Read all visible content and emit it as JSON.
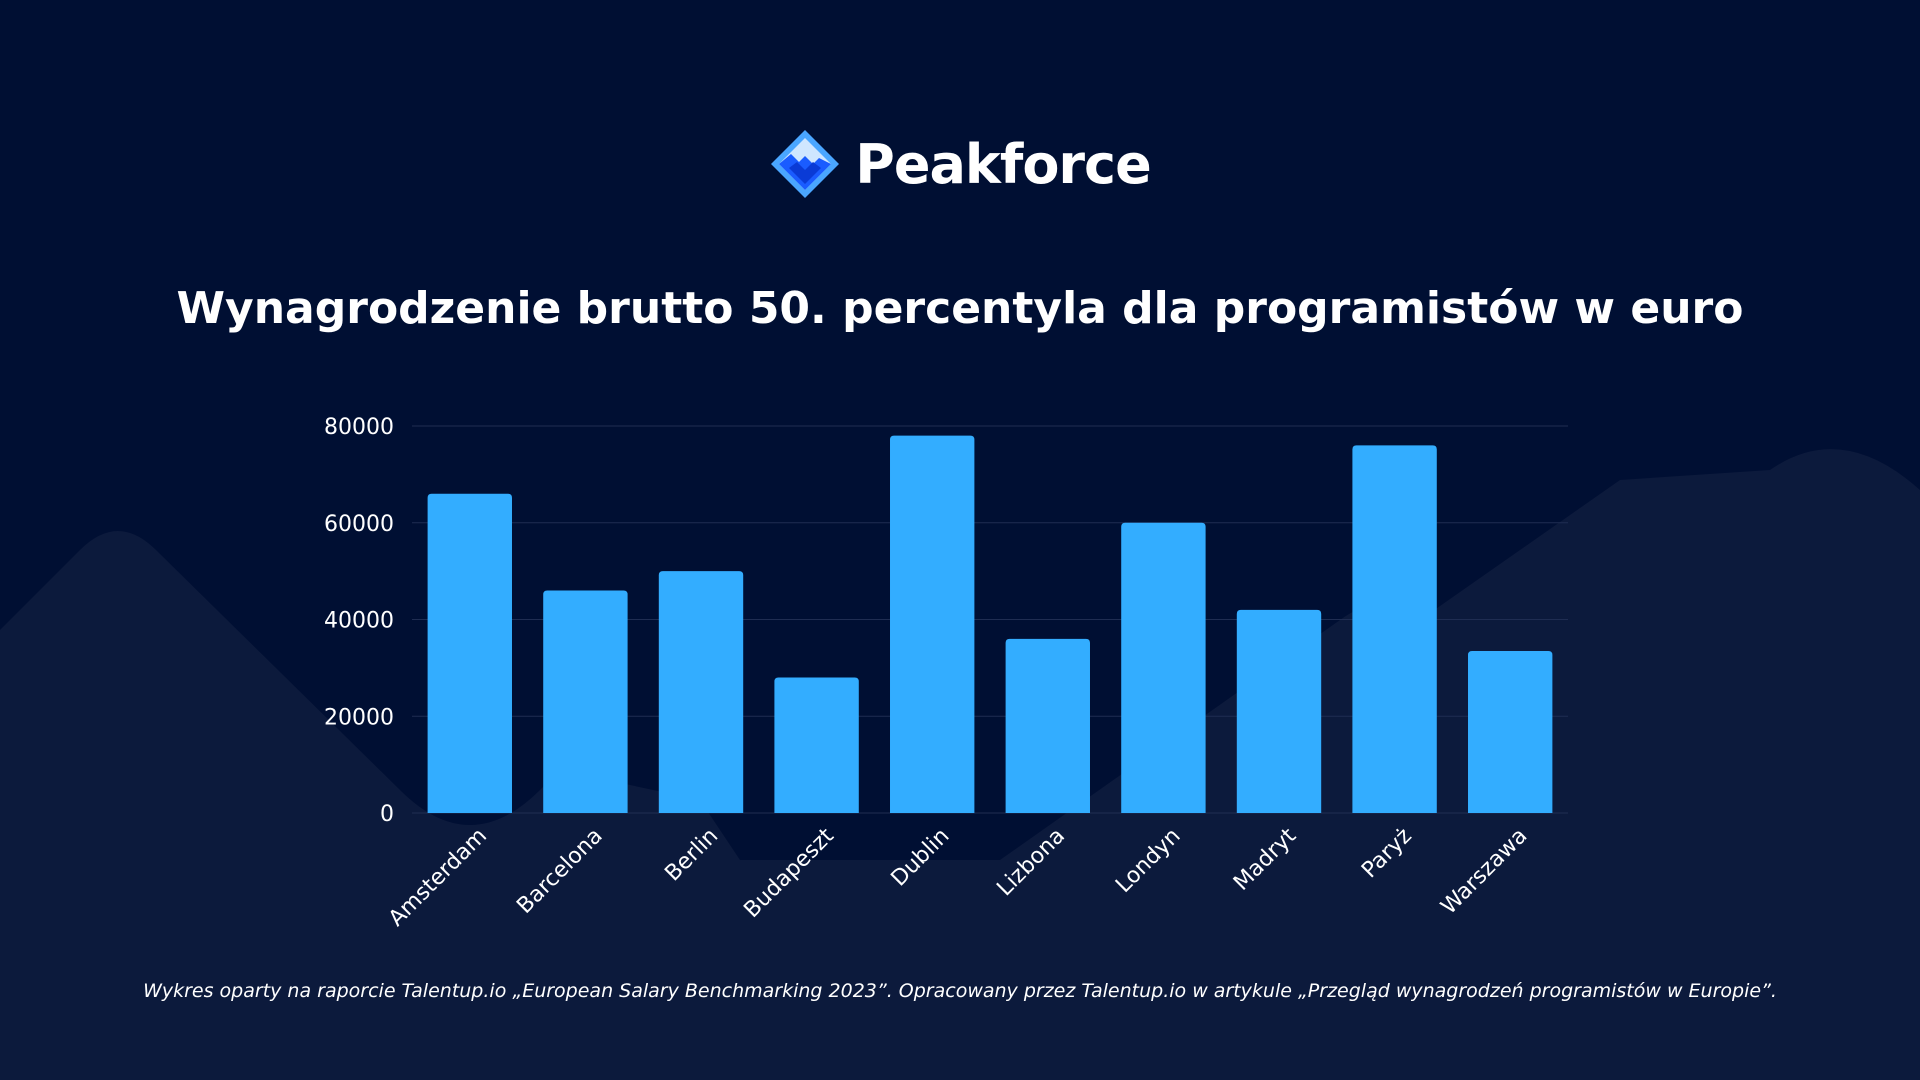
{
  "brand": {
    "name": "Peakforce",
    "logo_icon": "peak-diamond-icon"
  },
  "colors": {
    "background": "#000f33",
    "bar": "#33adff",
    "grid": "#1f2d52",
    "text": "#ffffff",
    "mountain": "#0c1a3c"
  },
  "chart_data": {
    "type": "bar",
    "title": "Wynagrodzenie brutto 50. percentyla dla programistów w euro",
    "xlabel": "",
    "ylabel": "",
    "categories": [
      "Amsterdam",
      "Barcelona",
      "Berlin",
      "Budapeszt",
      "Dublin",
      "Lizbona",
      "Londyn",
      "Madryt",
      "Paryż",
      "Warszawa"
    ],
    "values": [
      66000,
      46000,
      50000,
      28000,
      78000,
      36000,
      60000,
      42000,
      76000,
      33500
    ],
    "ylim": [
      0,
      80000
    ],
    "yticks": [
      "0",
      "20000",
      "40000",
      "60000",
      "80000"
    ],
    "grid": true
  },
  "footnote": "Wykres oparty na raporcie Talentup.io „European Salary Benchmarking 2023”. Opracowany przez Talentup.io w artykule „Przegląd wynagrodzeń programistów w Europie”."
}
